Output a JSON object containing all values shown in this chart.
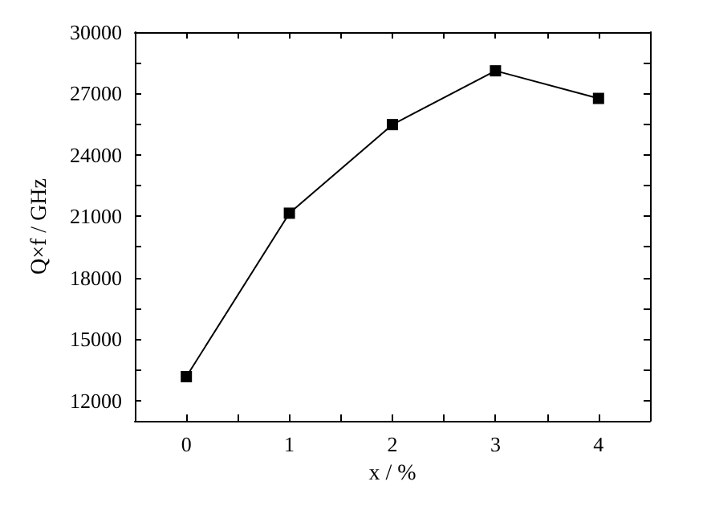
{
  "chart_data": {
    "type": "line",
    "xlabel": "x / %",
    "ylabel": "Q×f / GHz",
    "x": [
      0,
      1,
      2,
      3,
      4
    ],
    "series": [
      {
        "color": "#000000",
        "values": [
          13160,
          21150,
          25480,
          28110,
          26760
        ]
      }
    ],
    "xlim": [
      -0.5,
      4.5
    ],
    "xticks": [
      {
        "value": -0.5,
        "label": null
      },
      0,
      {
        "value": 0.5,
        "label": null
      },
      1,
      {
        "value": 1.5,
        "label": null
      },
      2,
      {
        "value": 2.5,
        "label": null
      },
      3,
      {
        "value": 3.5,
        "label": null
      },
      4,
      {
        "value": 4.5,
        "label": null
      }
    ],
    "ylim": [
      11000,
      30000
    ],
    "yticks": [
      12000,
      {
        "value": 13500,
        "label": null
      },
      15000,
      {
        "value": 16500,
        "label": null
      },
      18000,
      {
        "value": 19500,
        "label": null
      },
      21000,
      {
        "value": 22500,
        "label": null
      },
      24000,
      {
        "value": 25500,
        "label": null
      },
      27000,
      {
        "value": 28500,
        "label": null
      },
      30000
    ],
    "marker": "square",
    "line_style": "solid"
  }
}
